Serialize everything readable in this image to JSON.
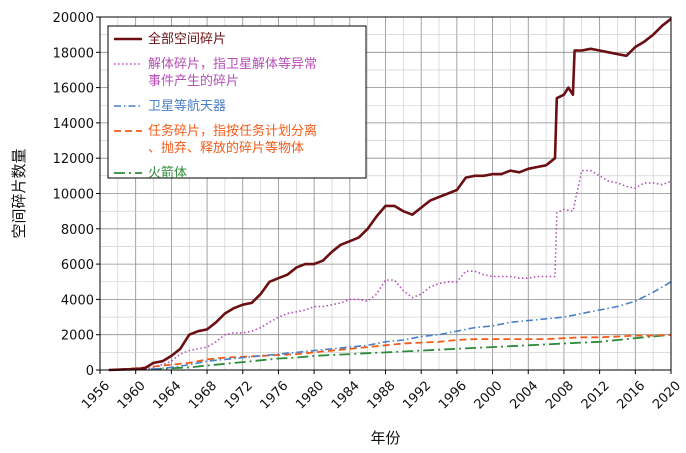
{
  "chart_data": {
    "type": "line",
    "xlabel": "年份",
    "ylabel": "空间碎片数量",
    "xlim": [
      1956,
      2020
    ],
    "ylim": [
      0,
      20000
    ],
    "x_ticks": [
      1956,
      1960,
      1964,
      1968,
      1972,
      1976,
      1980,
      1984,
      1988,
      1992,
      1996,
      2000,
      2004,
      2008,
      2012,
      2016,
      2020
    ],
    "y_ticks": [
      0,
      2000,
      4000,
      6000,
      8000,
      10000,
      12000,
      14000,
      16000,
      18000,
      20000
    ],
    "grid": true,
    "legend_position": "top-left",
    "series": [
      {
        "name": "全部空间碎片",
        "color": "#6b0f12",
        "style": "solid",
        "x": [
          1957,
          1960,
          1961,
          1962,
          1963,
          1964,
          1965,
          1966,
          1967,
          1968,
          1969,
          1970,
          1971,
          1972,
          1973,
          1974,
          1975,
          1976,
          1977,
          1978,
          1979,
          1980,
          1981,
          1982,
          1983,
          1984,
          1985,
          1986,
          1987,
          1988,
          1989,
          1990,
          1991,
          1992,
          1993,
          1994,
          1995,
          1996,
          1997,
          1998,
          1999,
          2000,
          2001,
          2002,
          2003,
          2004,
          2005,
          2006,
          2007,
          2007.2,
          2008,
          2008.5,
          2009,
          2009.2,
          2010,
          2011,
          2012,
          2013,
          2014,
          2015,
          2016,
          2017,
          2018,
          2019,
          2020
        ],
        "y": [
          0,
          50,
          100,
          400,
          500,
          800,
          1200,
          2000,
          2200,
          2300,
          2700,
          3200,
          3500,
          3700,
          3800,
          4300,
          5000,
          5200,
          5400,
          5800,
          6000,
          6000,
          6200,
          6700,
          7100,
          7300,
          7500,
          8000,
          8700,
          9300,
          9300,
          9000,
          8800,
          9200,
          9600,
          9800,
          10000,
          10200,
          10900,
          11000,
          11000,
          11100,
          11100,
          11300,
          11200,
          11400,
          11500,
          11600,
          12000,
          15400,
          15600,
          16000,
          15600,
          18100,
          18100,
          18200,
          18100,
          18000,
          17900,
          17800,
          18300,
          18600,
          19000,
          19500,
          19900
        ]
      },
      {
        "name": "解体碎片，指卫星解体等异常事件产生的碎片",
        "color": "#b64fb8",
        "style": "dotted",
        "x": [
          1957,
          1961,
          1962,
          1963,
          1964,
          1965,
          1966,
          1967,
          1968,
          1969,
          1970,
          1971,
          1972,
          1973,
          1974,
          1975,
          1976,
          1977,
          1978,
          1979,
          1980,
          1981,
          1982,
          1983,
          1984,
          1985,
          1986,
          1987,
          1988,
          1989,
          1990,
          1991,
          1992,
          1993,
          1994,
          1995,
          1996,
          1997,
          1998,
          1999,
          2000,
          2001,
          2002,
          2003,
          2004,
          2005,
          2006,
          2007,
          2007.2,
          2008,
          2009,
          2010,
          2011,
          2012,
          2013,
          2014,
          2015,
          2016,
          2017,
          2018,
          2019,
          2020
        ],
        "y": [
          0,
          50,
          150,
          300,
          500,
          900,
          1100,
          1200,
          1300,
          1600,
          2000,
          2100,
          2100,
          2200,
          2400,
          2700,
          3000,
          3200,
          3300,
          3400,
          3600,
          3600,
          3700,
          3800,
          4000,
          4000,
          3900,
          4300,
          5100,
          5100,
          4500,
          4100,
          4300,
          4700,
          4900,
          5000,
          5000,
          5600,
          5600,
          5400,
          5300,
          5300,
          5300,
          5200,
          5200,
          5300,
          5300,
          5300,
          8900,
          9100,
          9000,
          11300,
          11300,
          11000,
          10700,
          10600,
          10400,
          10300,
          10600,
          10600,
          10500,
          10700
        ]
      },
      {
        "name": "卫星等航天器",
        "color": "#4a7fc9",
        "style": "dashdot",
        "x": [
          1957,
          1962,
          1964,
          1966,
          1968,
          1970,
          1972,
          1974,
          1976,
          1978,
          1980,
          1982,
          1984,
          1986,
          1988,
          1990,
          1992,
          1994,
          1996,
          1998,
          2000,
          2002,
          2004,
          2006,
          2008,
          2010,
          2012,
          2014,
          2016,
          2018,
          2020
        ],
        "y": [
          0,
          50,
          150,
          300,
          500,
          600,
          700,
          800,
          900,
          1000,
          1100,
          1200,
          1300,
          1400,
          1600,
          1700,
          1900,
          2000,
          2200,
          2400,
          2500,
          2700,
          2800,
          2900,
          3000,
          3200,
          3400,
          3600,
          3900,
          4400,
          5000
        ]
      },
      {
        "name": "任务碎片，指按任务计划分离、抛弃、释放的碎片等物体",
        "color": "#f25c19",
        "style": "dashed",
        "x": [
          1957,
          1960,
          1962,
          1964,
          1966,
          1968,
          1970,
          1972,
          1974,
          1976,
          1978,
          1980,
          1982,
          1984,
          1986,
          1988,
          1990,
          1992,
          1994,
          1996,
          1998,
          2000,
          2002,
          2004,
          2006,
          2008,
          2010,
          2012,
          2014,
          2016,
          2018,
          2020
        ],
        "y": [
          0,
          100,
          200,
          300,
          400,
          600,
          700,
          750,
          800,
          850,
          900,
          1000,
          1100,
          1200,
          1300,
          1400,
          1500,
          1550,
          1600,
          1700,
          1750,
          1750,
          1750,
          1750,
          1750,
          1800,
          1850,
          1850,
          1900,
          1950,
          1950,
          2000
        ]
      },
      {
        "name": "火箭体",
        "color": "#2e8b3a",
        "style": "longdashdot",
        "x": [
          1957,
          1960,
          1962,
          1964,
          1966,
          1968,
          1970,
          1972,
          1974,
          1976,
          1978,
          1980,
          1982,
          1984,
          1986,
          1988,
          1990,
          1992,
          1994,
          1996,
          1998,
          2000,
          2002,
          2004,
          2006,
          2008,
          2010,
          2012,
          2014,
          2016,
          2018,
          2020
        ],
        "y": [
          0,
          20,
          50,
          100,
          150,
          250,
          350,
          450,
          550,
          650,
          700,
          800,
          850,
          900,
          950,
          1000,
          1050,
          1100,
          1150,
          1200,
          1250,
          1300,
          1350,
          1400,
          1450,
          1500,
          1550,
          1600,
          1700,
          1800,
          1900,
          2000
        ]
      }
    ]
  }
}
